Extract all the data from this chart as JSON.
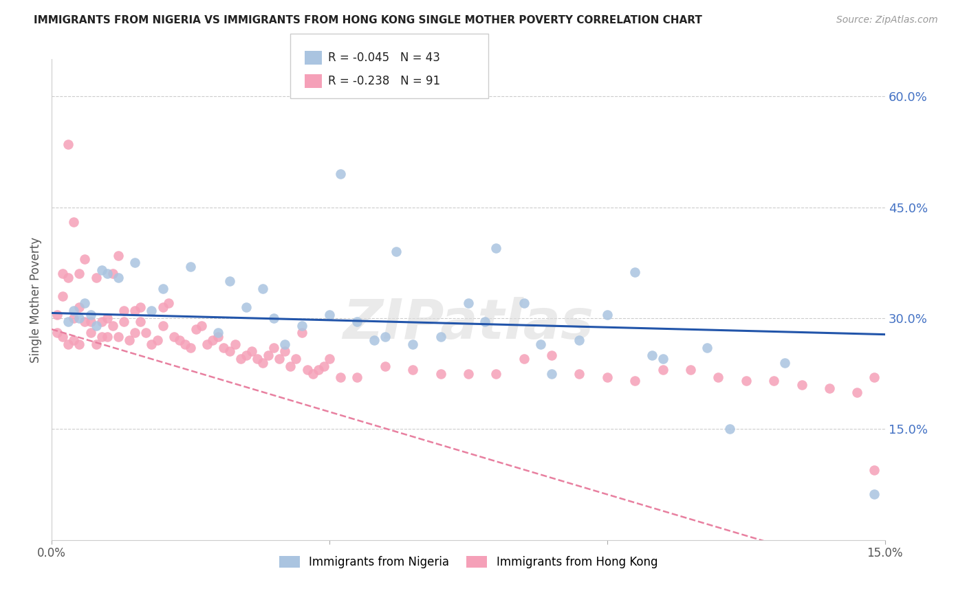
{
  "title": "IMMIGRANTS FROM NIGERIA VS IMMIGRANTS FROM HONG KONG SINGLE MOTHER POVERTY CORRELATION CHART",
  "source": "Source: ZipAtlas.com",
  "ylabel": "Single Mother Poverty",
  "x_min": 0.0,
  "x_max": 0.15,
  "y_min": 0.0,
  "y_max": 0.65,
  "nigeria_R": -0.045,
  "nigeria_N": 43,
  "hk_R": -0.238,
  "hk_N": 91,
  "nigeria_color": "#aac4e0",
  "hk_color": "#f5a0b8",
  "nigeria_line_color": "#2255aa",
  "hk_line_color": "#e880a0",
  "grid_color": "#cccccc",
  "watermark": "ZIPatlas",
  "nigeria_scatter_x": [
    0.003,
    0.004,
    0.005,
    0.006,
    0.007,
    0.008,
    0.009,
    0.01,
    0.012,
    0.015,
    0.018,
    0.02,
    0.025,
    0.03,
    0.032,
    0.035,
    0.038,
    0.04,
    0.042,
    0.045,
    0.05,
    0.052,
    0.055,
    0.058,
    0.06,
    0.062,
    0.065,
    0.07,
    0.075,
    0.078,
    0.08,
    0.085,
    0.088,
    0.09,
    0.095,
    0.1,
    0.105,
    0.108,
    0.11,
    0.118,
    0.122,
    0.132,
    0.148
  ],
  "nigeria_scatter_y": [
    0.295,
    0.31,
    0.3,
    0.32,
    0.305,
    0.29,
    0.365,
    0.36,
    0.355,
    0.375,
    0.31,
    0.34,
    0.37,
    0.28,
    0.35,
    0.315,
    0.34,
    0.3,
    0.265,
    0.29,
    0.305,
    0.495,
    0.295,
    0.27,
    0.275,
    0.39,
    0.265,
    0.275,
    0.32,
    0.295,
    0.395,
    0.32,
    0.265,
    0.225,
    0.27,
    0.305,
    0.362,
    0.25,
    0.245,
    0.26,
    0.15,
    0.24,
    0.062
  ],
  "hk_scatter_x": [
    0.001,
    0.001,
    0.002,
    0.002,
    0.003,
    0.003,
    0.004,
    0.004,
    0.005,
    0.005,
    0.006,
    0.006,
    0.007,
    0.007,
    0.008,
    0.008,
    0.009,
    0.009,
    0.01,
    0.01,
    0.011,
    0.011,
    0.012,
    0.012,
    0.013,
    0.013,
    0.014,
    0.015,
    0.015,
    0.016,
    0.016,
    0.017,
    0.018,
    0.019,
    0.02,
    0.02,
    0.021,
    0.022,
    0.023,
    0.024,
    0.025,
    0.026,
    0.027,
    0.028,
    0.029,
    0.03,
    0.031,
    0.032,
    0.033,
    0.034,
    0.035,
    0.036,
    0.037,
    0.038,
    0.039,
    0.04,
    0.041,
    0.042,
    0.043,
    0.044,
    0.045,
    0.046,
    0.047,
    0.048,
    0.049,
    0.05,
    0.052,
    0.055,
    0.06,
    0.065,
    0.07,
    0.075,
    0.08,
    0.085,
    0.09,
    0.095,
    0.1,
    0.105,
    0.11,
    0.115,
    0.12,
    0.125,
    0.13,
    0.135,
    0.14,
    0.145,
    0.148,
    0.148,
    0.002,
    0.003,
    0.004,
    0.005
  ],
  "hk_scatter_y": [
    0.305,
    0.28,
    0.33,
    0.275,
    0.355,
    0.265,
    0.3,
    0.27,
    0.315,
    0.265,
    0.38,
    0.295,
    0.295,
    0.28,
    0.355,
    0.265,
    0.275,
    0.295,
    0.3,
    0.275,
    0.29,
    0.36,
    0.385,
    0.275,
    0.31,
    0.295,
    0.27,
    0.31,
    0.28,
    0.315,
    0.295,
    0.28,
    0.265,
    0.27,
    0.29,
    0.315,
    0.32,
    0.275,
    0.27,
    0.265,
    0.26,
    0.285,
    0.29,
    0.265,
    0.27,
    0.275,
    0.26,
    0.255,
    0.265,
    0.245,
    0.25,
    0.255,
    0.245,
    0.24,
    0.25,
    0.26,
    0.245,
    0.255,
    0.235,
    0.245,
    0.28,
    0.23,
    0.225,
    0.23,
    0.235,
    0.245,
    0.22,
    0.22,
    0.235,
    0.23,
    0.225,
    0.225,
    0.225,
    0.245,
    0.25,
    0.225,
    0.22,
    0.215,
    0.23,
    0.23,
    0.22,
    0.215,
    0.215,
    0.21,
    0.205,
    0.2,
    0.22,
    0.095,
    0.36,
    0.535,
    0.43,
    0.36
  ]
}
